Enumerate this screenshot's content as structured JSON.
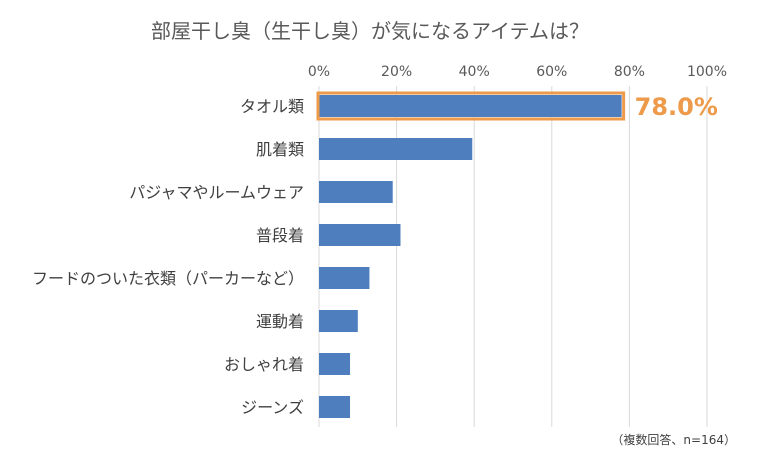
{
  "chart_data": {
    "type": "bar",
    "orientation": "horizontal",
    "title": "部屋干し臭（生干し臭）が気になるアイテムは？",
    "xlim": [
      0,
      100
    ],
    "ticks": [
      0,
      20,
      40,
      60,
      80,
      100
    ],
    "tick_labels": [
      "0%",
      "20%",
      "40%",
      "60%",
      "80%",
      "100%"
    ],
    "tick_position": "top",
    "grid": true,
    "categories": [
      "タオル類",
      "肌着類",
      "パジャマやルームウェア",
      "普段着",
      "フードのついた衣類（パーカーなど）",
      "運動着",
      "おしゃれ着",
      "ジーンズ"
    ],
    "values": [
      78.0,
      39.5,
      19.0,
      21.0,
      13.0,
      10.0,
      8.0,
      8.0
    ],
    "units": "%",
    "highlight": {
      "category": "タオル類",
      "label": "78.0%"
    },
    "footnote": "（複数回答、n=164）"
  },
  "colors": {
    "bar": "#4E7EBD",
    "highlight": "#ED9A4A",
    "grid": "#D9D9D9",
    "text": "#404040",
    "axis_text": "#595959"
  }
}
